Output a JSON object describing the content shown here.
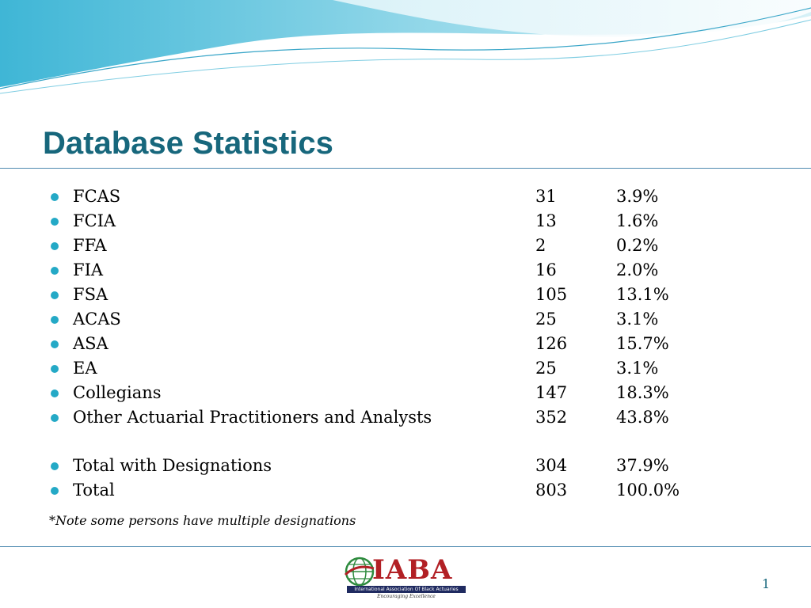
{
  "slide": {
    "title": "Database Statistics",
    "items": [
      {
        "label": "FCAS",
        "count": "31",
        "percent": "3.9%"
      },
      {
        "label": "FCIA",
        "count": "13",
        "percent": "1.6%"
      },
      {
        "label": "FFA",
        "count": "2",
        "percent": "0.2%"
      },
      {
        "label": "FIA",
        "count": "16",
        "percent": "2.0%"
      },
      {
        "label": "FSA",
        "count": "105",
        "percent": "13.1%"
      },
      {
        "label": "ACAS",
        "count": "25",
        "percent": "3.1%"
      },
      {
        "label": "ASA",
        "count": "126",
        "percent": "15.7%"
      },
      {
        "label": "EA",
        "count": "25",
        "percent": "3.1%"
      },
      {
        "label": "Collegians",
        "count": "147",
        "percent": "18.3%"
      },
      {
        "label": "Other Actuarial Practitioners and Analysts",
        "count": "352",
        "percent": "43.8%"
      }
    ],
    "totals": [
      {
        "label": "Total with Designations",
        "count": "304",
        "percent": "37.9%"
      },
      {
        "label": "Total",
        "count": "803",
        "percent": "100.0%"
      }
    ],
    "note": "*Note some persons have multiple designations",
    "page_number": "1"
  },
  "logo": {
    "name": "IABA",
    "full_name": "International Association Of Black Actuaries",
    "tagline": "Encouraging Excellence"
  },
  "colors": {
    "title": "#17677c",
    "bullet": "#24a9c6",
    "rule": "#4f8ab0",
    "logo_red": "#b22025",
    "logo_navy": "#1f2a60"
  }
}
